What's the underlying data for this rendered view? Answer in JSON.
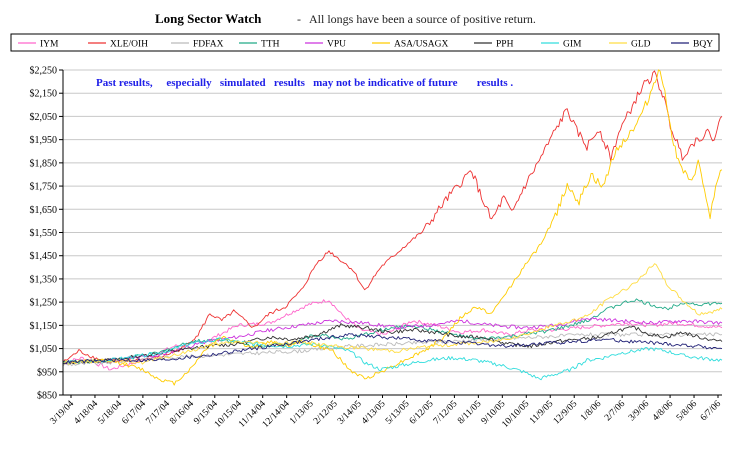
{
  "title": "Long Sector Watch",
  "subtitle_sep": "-",
  "subtitle": "All longs have been a source of positive return.",
  "note": "Past results,     especially   simulated   results   may not be indicative of future       results .",
  "chart_data": {
    "type": "line",
    "title": "Long Sector Watch",
    "ylim": [
      850,
      2250
    ],
    "ystep": 100,
    "y_ticks": [
      "$850",
      "$950",
      "$1,050",
      "$1,150",
      "$1,250",
      "$1,350",
      "$1,450",
      "$1,550",
      "$1,650",
      "$1,750",
      "$1,850",
      "$1,950",
      "$2,050",
      "$2,150",
      "$2,250"
    ],
    "grid": "horizontal",
    "legend_position": "top",
    "x_tick_labels": [
      "3/19/04",
      "4/18/04",
      "5/18/04",
      "6/17/04",
      "7/17/04",
      "8/16/04",
      "9/15/04",
      "10/15/04",
      "11/14/04",
      "12/14/04",
      "1/13/05",
      "2/12/05",
      "3/14/05",
      "4/13/05",
      "5/13/05",
      "6/12/05",
      "7/12/05",
      "8/11/05",
      "9/10/05",
      "10/10/05",
      "11/9/05",
      "12/9/05",
      "1/8/06",
      "2/7/06",
      "3/9/06",
      "4/8/06",
      "5/8/06",
      "6/7/06"
    ],
    "x_range_days": [
      0,
      830
    ],
    "series": [
      {
        "name": "IYM",
        "color": "#ff66cc",
        "points": [
          [
            0,
            990
          ],
          [
            25,
            1010
          ],
          [
            60,
            960
          ],
          [
            100,
            1000
          ],
          [
            140,
            1060
          ],
          [
            180,
            1080
          ],
          [
            220,
            1150
          ],
          [
            260,
            1160
          ],
          [
            290,
            1210
          ],
          [
            310,
            1240
          ],
          [
            335,
            1260
          ],
          [
            350,
            1200
          ],
          [
            375,
            1130
          ],
          [
            405,
            1110
          ],
          [
            440,
            1170
          ],
          [
            470,
            1150
          ],
          [
            500,
            1120
          ],
          [
            530,
            1130
          ],
          [
            560,
            1110
          ],
          [
            590,
            1130
          ],
          [
            620,
            1130
          ],
          [
            650,
            1140
          ],
          [
            680,
            1150
          ],
          [
            710,
            1160
          ],
          [
            740,
            1150
          ],
          [
            770,
            1160
          ],
          [
            800,
            1150
          ],
          [
            830,
            1140
          ]
        ]
      },
      {
        "name": "XLE/OIH",
        "color": "#ee3333",
        "points": [
          [
            0,
            990
          ],
          [
            20,
            1040
          ],
          [
            40,
            1010
          ],
          [
            60,
            990
          ],
          [
            90,
            1000
          ],
          [
            120,
            1010
          ],
          [
            150,
            1050
          ],
          [
            170,
            1110
          ],
          [
            185,
            1200
          ],
          [
            200,
            1170
          ],
          [
            215,
            1210
          ],
          [
            240,
            1140
          ],
          [
            260,
            1200
          ],
          [
            280,
            1230
          ],
          [
            300,
            1300
          ],
          [
            320,
            1420
          ],
          [
            335,
            1470
          ],
          [
            350,
            1430
          ],
          [
            365,
            1390
          ],
          [
            380,
            1300
          ],
          [
            400,
            1400
          ],
          [
            430,
            1490
          ],
          [
            455,
            1560
          ],
          [
            480,
            1680
          ],
          [
            500,
            1760
          ],
          [
            515,
            1820
          ],
          [
            525,
            1720
          ],
          [
            540,
            1600
          ],
          [
            555,
            1700
          ],
          [
            565,
            1630
          ],
          [
            580,
            1740
          ],
          [
            600,
            1860
          ],
          [
            620,
            1990
          ],
          [
            635,
            2080
          ],
          [
            645,
            2000
          ],
          [
            660,
            1920
          ],
          [
            675,
            2000
          ],
          [
            690,
            1870
          ],
          [
            700,
            1980
          ],
          [
            715,
            2080
          ],
          [
            730,
            2180
          ],
          [
            745,
            2230
          ],
          [
            755,
            2150
          ],
          [
            765,
            2010
          ],
          [
            780,
            1880
          ],
          [
            795,
            1940
          ],
          [
            810,
            1980
          ],
          [
            820,
            1960
          ],
          [
            830,
            2050
          ]
        ]
      },
      {
        "name": "FDFAX",
        "color": "#bbbbbb",
        "points": [
          [
            0,
            980
          ],
          [
            60,
            990
          ],
          [
            120,
            1010
          ],
          [
            180,
            1020
          ],
          [
            240,
            1030
          ],
          [
            300,
            1040
          ],
          [
            360,
            1060
          ],
          [
            420,
            1070
          ],
          [
            480,
            1080
          ],
          [
            540,
            1090
          ],
          [
            600,
            1100
          ],
          [
            660,
            1110
          ],
          [
            720,
            1110
          ],
          [
            780,
            1110
          ],
          [
            830,
            1110
          ]
        ]
      },
      {
        "name": "TTH",
        "color": "#22aa88",
        "points": [
          [
            0,
            990
          ],
          [
            60,
            1000
          ],
          [
            120,
            1030
          ],
          [
            160,
            1080
          ],
          [
            200,
            1090
          ],
          [
            240,
            1060
          ],
          [
            280,
            1070
          ],
          [
            320,
            1110
          ],
          [
            360,
            1090
          ],
          [
            400,
            1130
          ],
          [
            440,
            1150
          ],
          [
            480,
            1120
          ],
          [
            520,
            1090
          ],
          [
            560,
            1100
          ],
          [
            600,
            1120
          ],
          [
            630,
            1140
          ],
          [
            660,
            1170
          ],
          [
            680,
            1210
          ],
          [
            700,
            1240
          ],
          [
            720,
            1260
          ],
          [
            740,
            1240
          ],
          [
            760,
            1220
          ],
          [
            780,
            1250
          ],
          [
            800,
            1240
          ],
          [
            830,
            1245
          ]
        ]
      },
      {
        "name": "VPU",
        "color": "#cc33dd",
        "points": [
          [
            0,
            990
          ],
          [
            60,
            1000
          ],
          [
            120,
            1020
          ],
          [
            180,
            1080
          ],
          [
            220,
            1100
          ],
          [
            260,
            1130
          ],
          [
            300,
            1150
          ],
          [
            340,
            1170
          ],
          [
            380,
            1160
          ],
          [
            420,
            1140
          ],
          [
            460,
            1150
          ],
          [
            500,
            1170
          ],
          [
            540,
            1150
          ],
          [
            580,
            1140
          ],
          [
            620,
            1150
          ],
          [
            660,
            1180
          ],
          [
            700,
            1170
          ],
          [
            740,
            1160
          ],
          [
            780,
            1170
          ],
          [
            830,
            1160
          ]
        ]
      },
      {
        "name": "ASA/USAGX",
        "color": "#ffcc00",
        "points": [
          [
            0,
            990
          ],
          [
            60,
            1000
          ],
          [
            100,
            960
          ],
          [
            120,
            920
          ],
          [
            140,
            900
          ],
          [
            160,
            960
          ],
          [
            180,
            1050
          ],
          [
            200,
            1100
          ],
          [
            220,
            1080
          ],
          [
            240,
            1050
          ],
          [
            260,
            1080
          ],
          [
            280,
            1060
          ],
          [
            300,
            1080
          ],
          [
            320,
            1060
          ],
          [
            340,
            1040
          ],
          [
            360,
            960
          ],
          [
            380,
            920
          ],
          [
            400,
            950
          ],
          [
            430,
            1000
          ],
          [
            460,
            1050
          ],
          [
            480,
            1100
          ],
          [
            500,
            1180
          ],
          [
            520,
            1230
          ],
          [
            540,
            1200
          ],
          [
            560,
            1300
          ],
          [
            580,
            1400
          ],
          [
            600,
            1490
          ],
          [
            620,
            1620
          ],
          [
            635,
            1760
          ],
          [
            650,
            1680
          ],
          [
            665,
            1800
          ],
          [
            680,
            1740
          ],
          [
            695,
            1900
          ],
          [
            710,
            1960
          ],
          [
            725,
            2030
          ],
          [
            740,
            2150
          ],
          [
            750,
            2250
          ],
          [
            758,
            2170
          ],
          [
            765,
            2000
          ],
          [
            775,
            1850
          ],
          [
            790,
            1760
          ],
          [
            800,
            1850
          ],
          [
            810,
            1700
          ],
          [
            815,
            1600
          ],
          [
            820,
            1720
          ],
          [
            830,
            1820
          ]
        ]
      },
      {
        "name": "PPH",
        "color": "#333333",
        "points": [
          [
            0,
            990
          ],
          [
            60,
            1000
          ],
          [
            120,
            1030
          ],
          [
            180,
            1060
          ],
          [
            220,
            1070
          ],
          [
            260,
            1100
          ],
          [
            290,
            1090
          ],
          [
            320,
            1110
          ],
          [
            350,
            1150
          ],
          [
            380,
            1140
          ],
          [
            410,
            1120
          ],
          [
            440,
            1130
          ],
          [
            470,
            1120
          ],
          [
            500,
            1100
          ],
          [
            530,
            1100
          ],
          [
            560,
            1070
          ],
          [
            590,
            1060
          ],
          [
            620,
            1080
          ],
          [
            650,
            1090
          ],
          [
            680,
            1100
          ],
          [
            700,
            1130
          ],
          [
            720,
            1140
          ],
          [
            740,
            1110
          ],
          [
            760,
            1100
          ],
          [
            780,
            1120
          ],
          [
            800,
            1100
          ],
          [
            830,
            1080
          ]
        ]
      },
      {
        "name": "GIM",
        "color": "#33dddd",
        "points": [
          [
            0,
            990
          ],
          [
            60,
            1000
          ],
          [
            120,
            1030
          ],
          [
            160,
            1070
          ],
          [
            200,
            1090
          ],
          [
            240,
            1070
          ],
          [
            280,
            1060
          ],
          [
            320,
            1070
          ],
          [
            360,
            1040
          ],
          [
            380,
            990
          ],
          [
            400,
            960
          ],
          [
            430,
            980
          ],
          [
            460,
            1000
          ],
          [
            490,
            1010
          ],
          [
            520,
            1000
          ],
          [
            550,
            980
          ],
          [
            580,
            950
          ],
          [
            600,
            920
          ],
          [
            620,
            940
          ],
          [
            640,
            960
          ],
          [
            660,
            1000
          ],
          [
            680,
            1010
          ],
          [
            700,
            1030
          ],
          [
            720,
            1040
          ],
          [
            740,
            1050
          ],
          [
            760,
            1040
          ],
          [
            780,
            1020
          ],
          [
            800,
            1010
          ],
          [
            830,
            1000
          ]
        ]
      },
      {
        "name": "GLD",
        "color": "#ffdd44",
        "points": [
          [
            0,
            990
          ],
          [
            60,
            1000
          ],
          [
            100,
            990
          ],
          [
            140,
            1020
          ],
          [
            180,
            1060
          ],
          [
            220,
            1080
          ],
          [
            260,
            1070
          ],
          [
            300,
            1080
          ],
          [
            340,
            1060
          ],
          [
            380,
            1050
          ],
          [
            420,
            1040
          ],
          [
            460,
            1060
          ],
          [
            500,
            1070
          ],
          [
            540,
            1080
          ],
          [
            580,
            1110
          ],
          [
            620,
            1150
          ],
          [
            660,
            1190
          ],
          [
            690,
            1270
          ],
          [
            710,
            1310
          ],
          [
            730,
            1360
          ],
          [
            745,
            1420
          ],
          [
            760,
            1330
          ],
          [
            780,
            1260
          ],
          [
            800,
            1200
          ],
          [
            820,
            1210
          ],
          [
            830,
            1220
          ]
        ]
      },
      {
        "name": "BQY",
        "color": "#222277",
        "points": [
          [
            0,
            990
          ],
          [
            60,
            1000
          ],
          [
            120,
            1000
          ],
          [
            180,
            1020
          ],
          [
            240,
            1050
          ],
          [
            280,
            1070
          ],
          [
            320,
            1090
          ],
          [
            360,
            1110
          ],
          [
            400,
            1100
          ],
          [
            440,
            1090
          ],
          [
            480,
            1080
          ],
          [
            520,
            1070
          ],
          [
            560,
            1060
          ],
          [
            600,
            1070
          ],
          [
            640,
            1080
          ],
          [
            680,
            1090
          ],
          [
            720,
            1080
          ],
          [
            760,
            1070
          ],
          [
            800,
            1060
          ],
          [
            830,
            1050
          ]
        ]
      }
    ]
  }
}
